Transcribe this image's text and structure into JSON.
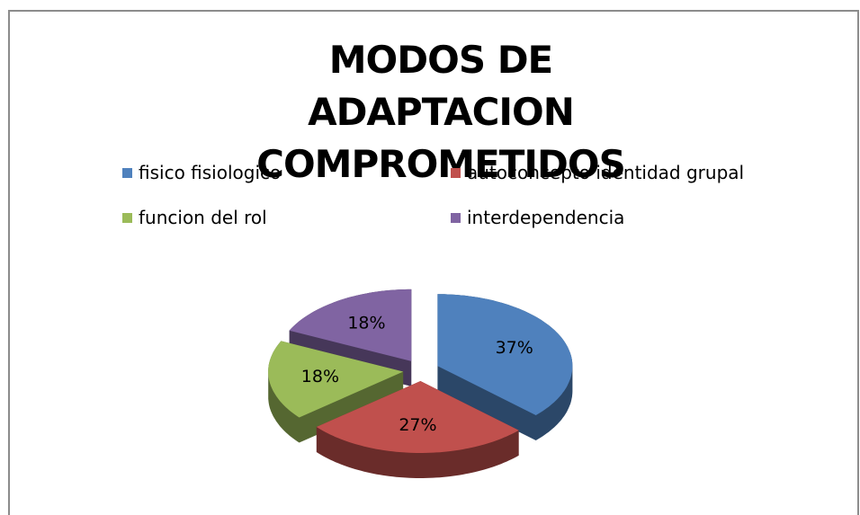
{
  "chart_data": {
    "type": "pie",
    "title": "MODOS DE ADAPTACION COMPROMETIDOS",
    "categories": [
      "fisico fisiologico",
      "autoconcepto identidad grupal",
      "funcion del rol",
      "interdependencia"
    ],
    "values": [
      37,
      27,
      18,
      18
    ],
    "value_labels": [
      "37%",
      "27%",
      "18%",
      "18%"
    ],
    "colors": [
      "#4f81bd",
      "#c0504d",
      "#9bbb59",
      "#8064a2"
    ],
    "legend": "top",
    "exploded": true,
    "three_d": true
  }
}
